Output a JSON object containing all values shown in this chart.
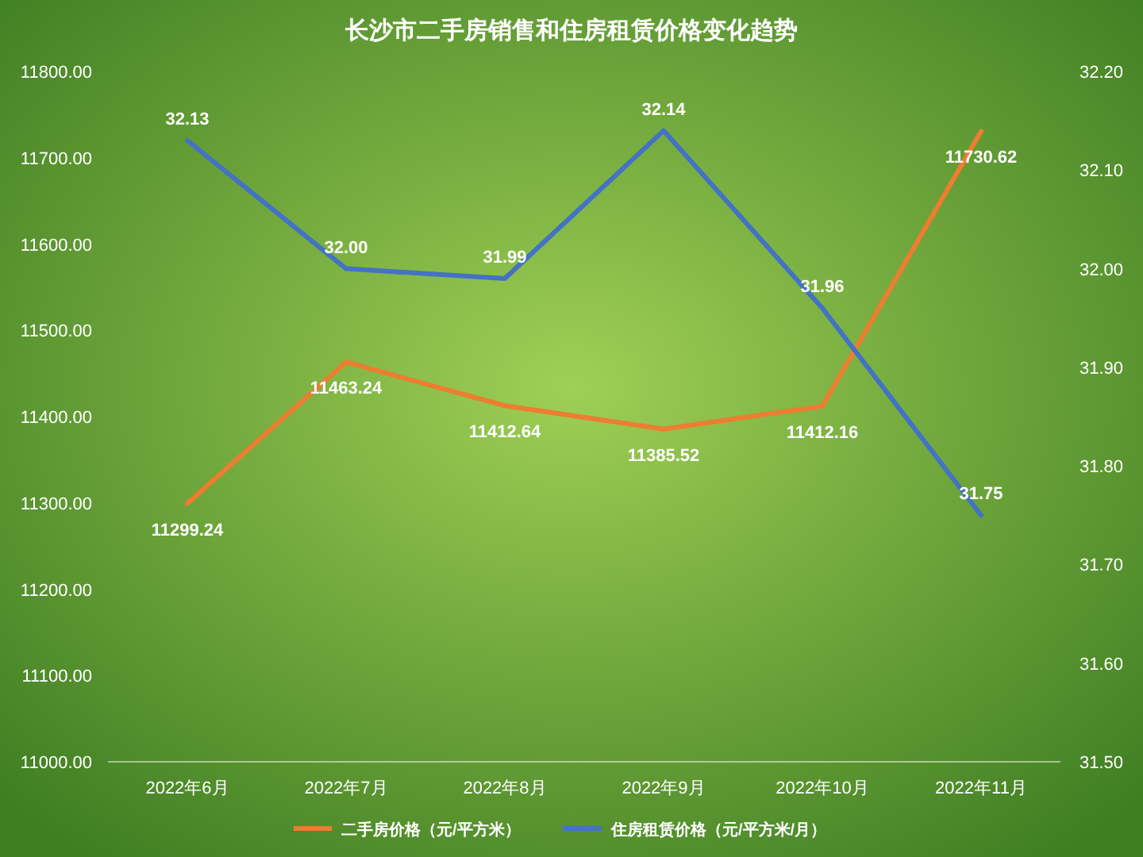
{
  "chart_data": {
    "type": "line",
    "title": "长沙市二手房销售和住房租赁价格变化趋势",
    "categories": [
      "2022年6月",
      "2022年7月",
      "2022年8月",
      "2022年9月",
      "2022年10月",
      "2022年11月"
    ],
    "series": [
      {
        "name": "二手房价格（元/平方米）",
        "color": "#ed7d31",
        "values": [
          11299.24,
          11463.24,
          11412.64,
          11385.52,
          11412.16,
          11730.62
        ],
        "value_labels": [
          "11299.24",
          "11463.24",
          "11412.64",
          "11385.52",
          "11412.16",
          "11730.62"
        ]
      },
      {
        "name": "住房租赁价格（元/平方米/月）",
        "color": "#4472c4",
        "axis": "y2",
        "values": [
          32.13,
          32.0,
          31.99,
          32.14,
          31.96,
          31.75
        ],
        "value_labels": [
          "32.13",
          "32.00",
          "31.99",
          "32.14",
          "31.96",
          "31.75"
        ]
      }
    ],
    "ylim": [
      11000,
      11800
    ],
    "yticks": [
      {
        "value": 11000,
        "label": "11000.00"
      },
      {
        "value": 11100,
        "label": "11100.00"
      },
      {
        "value": 11200,
        "label": "11200.00"
      },
      {
        "value": 11300,
        "label": "11300.00"
      },
      {
        "value": 11400,
        "label": "11400.00"
      },
      {
        "value": 11500,
        "label": "11500.00"
      },
      {
        "value": 11600,
        "label": "11600.00"
      },
      {
        "value": 11700,
        "label": "11700.00"
      },
      {
        "value": 11800,
        "label": "11800.00"
      }
    ],
    "y2lim": [
      31.5,
      32.2
    ],
    "y2ticks": [
      {
        "value": 31.5,
        "label": "31.50"
      },
      {
        "value": 31.6,
        "label": "31.60"
      },
      {
        "value": 31.7,
        "label": "31.70"
      },
      {
        "value": 31.8,
        "label": "31.80"
      },
      {
        "value": 31.9,
        "label": "31.90"
      },
      {
        "value": 32.0,
        "label": "32.00"
      },
      {
        "value": 32.1,
        "label": "32.10"
      },
      {
        "value": 32.2,
        "label": "32.20"
      }
    ],
    "legend": "bottom",
    "marker": "none",
    "line_style": "solid"
  }
}
